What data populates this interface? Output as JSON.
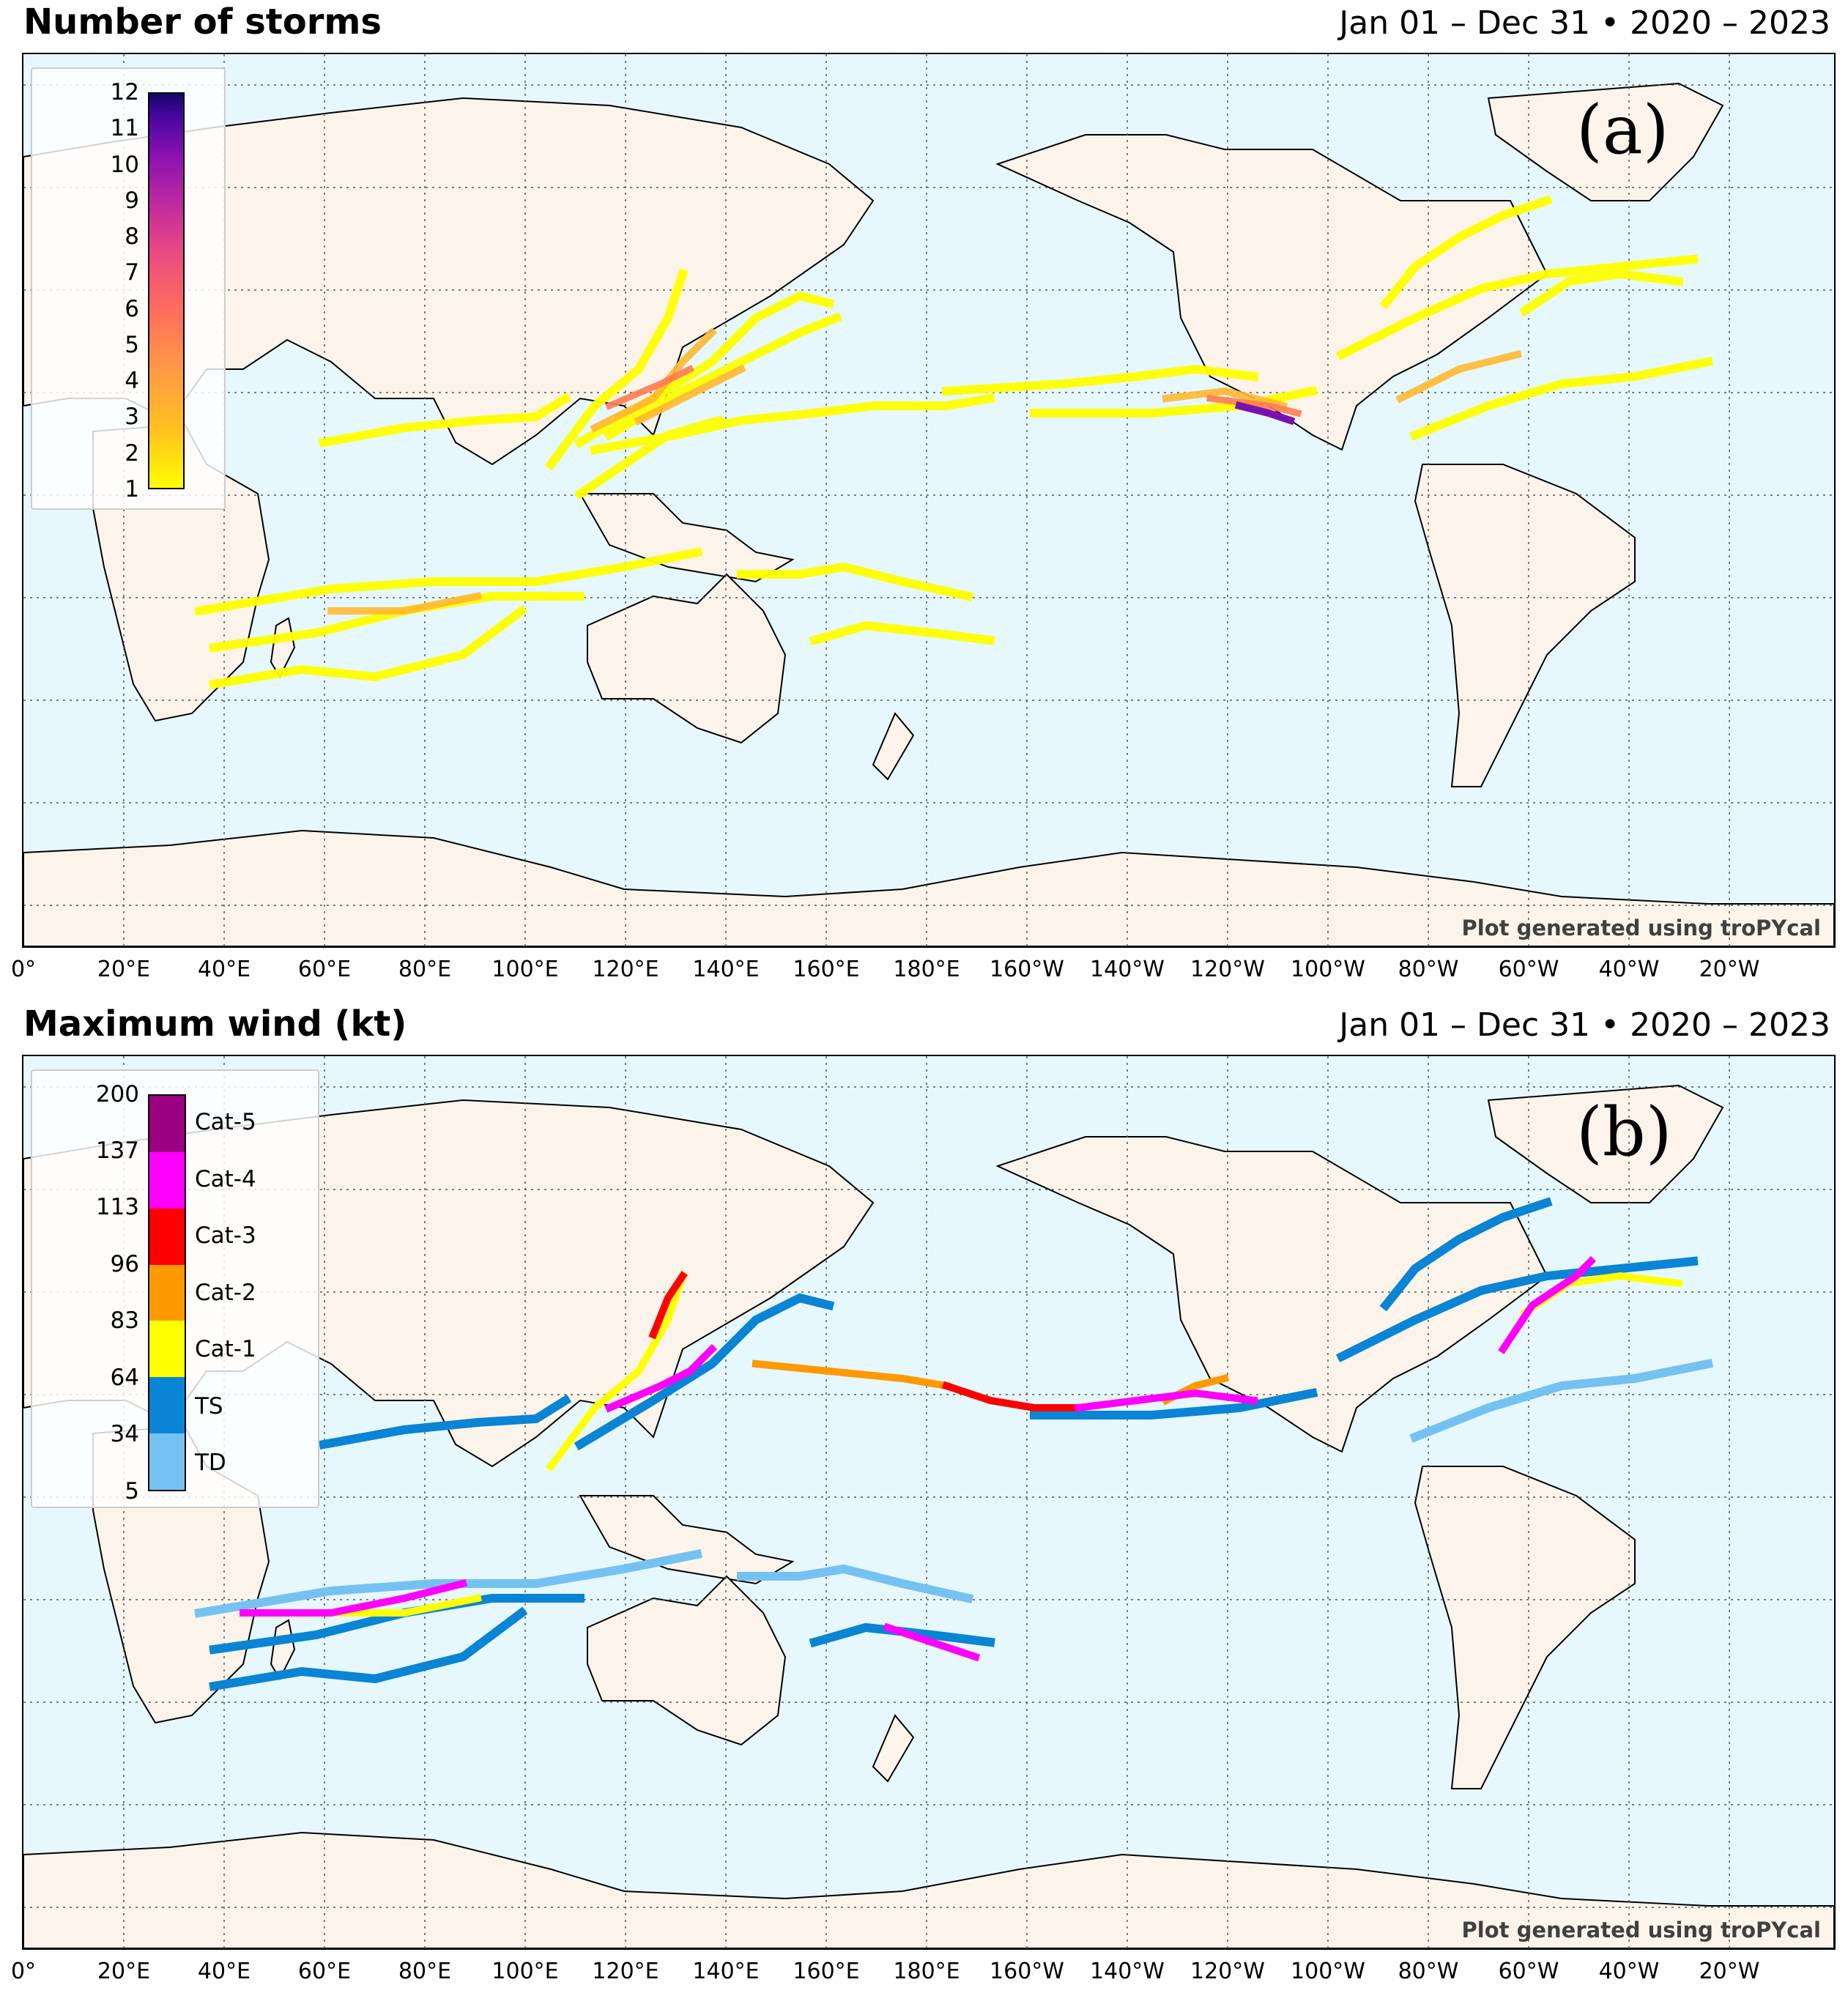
{
  "panel_a": {
    "title": "Number of storms",
    "date_range": "Jan 01 – Dec 31 • 2020 – 2023",
    "label": "(a)",
    "credit": "Plot generated using troPYcal",
    "colorbar": {
      "ticks": [
        "12",
        "11",
        "10",
        "9",
        "8",
        "7",
        "6",
        "5",
        "4",
        "3",
        "2",
        "1"
      ],
      "colors": [
        "#ffff00",
        "#ffcc20",
        "#ffa040",
        "#ff7f50",
        "#f05f70",
        "#d84090",
        "#b020a8",
        "#7a10b0",
        "#3a0890",
        "#14056a"
      ]
    }
  },
  "panel_b": {
    "title": "Maximum wind (kt)",
    "date_range": "Jan 01 – Dec 31 • 2020 – 2023",
    "label": "(b)",
    "credit": "Plot generated using troPYcal",
    "colorbar": {
      "ticks": [
        "200",
        "137",
        "113",
        "96",
        "83",
        "64",
        "34",
        "5"
      ],
      "categories": [
        {
          "name": "Cat-5",
          "color": "#9b0080"
        },
        {
          "name": "Cat-4",
          "color": "#ff00ff"
        },
        {
          "name": "Cat-3",
          "color": "#ff0000"
        },
        {
          "name": "Cat-2",
          "color": "#ff9900"
        },
        {
          "name": "Cat-1",
          "color": "#ffff00"
        },
        {
          "name": "TS",
          "color": "#0a84d4"
        },
        {
          "name": "TD",
          "color": "#74c2f2"
        }
      ]
    }
  },
  "x_axis_ticks": [
    "0°",
    "20°E",
    "40°E",
    "60°E",
    "80°E",
    "100°E",
    "120°E",
    "140°E",
    "160°E",
    "180°E",
    "160°W",
    "140°W",
    "120°W",
    "100°W",
    "80°W",
    "60°W",
    "40°W",
    "20°W"
  ],
  "map_colors": {
    "ocean": "#e6f8fe",
    "land": "#fcf4ea",
    "coast": "#000000",
    "grid": "#555555"
  }
}
